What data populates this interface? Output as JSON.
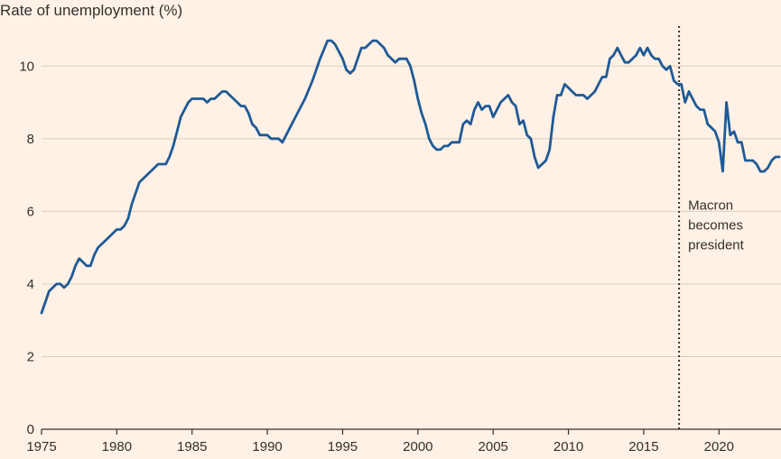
{
  "chart_data": {
    "type": "line",
    "title": "Rate of unemployment (%)",
    "xlabel": "",
    "ylabel": "Rate of unemployment (%)",
    "xlim": [
      1975,
      2024
    ],
    "ylim": [
      0,
      11
    ],
    "yticks": [
      0,
      2,
      4,
      6,
      8,
      10
    ],
    "xticks": [
      1975,
      1980,
      1985,
      1990,
      1995,
      2000,
      2005,
      2010,
      2015,
      2020
    ],
    "grid": "horizontal",
    "colors": {
      "line": "#1f5a96",
      "grid": "#d9cdbf",
      "axis": "#33302e",
      "background": "#fff1e5"
    },
    "series": [
      {
        "name": "Rate of unemployment",
        "points": [
          [
            1975.0,
            3.2
          ],
          [
            1975.25,
            3.5
          ],
          [
            1975.5,
            3.8
          ],
          [
            1975.75,
            3.9
          ],
          [
            1976.0,
            4.0
          ],
          [
            1976.25,
            4.0
          ],
          [
            1976.5,
            3.9
          ],
          [
            1976.75,
            4.0
          ],
          [
            1977.0,
            4.2
          ],
          [
            1977.25,
            4.5
          ],
          [
            1977.5,
            4.7
          ],
          [
            1977.75,
            4.6
          ],
          [
            1978.0,
            4.5
          ],
          [
            1978.25,
            4.5
          ],
          [
            1978.5,
            4.8
          ],
          [
            1978.75,
            5.0
          ],
          [
            1979.0,
            5.1
          ],
          [
            1979.5,
            5.3
          ],
          [
            1980.0,
            5.5
          ],
          [
            1980.25,
            5.5
          ],
          [
            1980.5,
            5.6
          ],
          [
            1980.75,
            5.8
          ],
          [
            1981.0,
            6.2
          ],
          [
            1981.25,
            6.5
          ],
          [
            1981.5,
            6.8
          ],
          [
            1982.0,
            7.0
          ],
          [
            1982.5,
            7.2
          ],
          [
            1982.75,
            7.3
          ],
          [
            1983.0,
            7.3
          ],
          [
            1983.25,
            7.3
          ],
          [
            1983.5,
            7.5
          ],
          [
            1983.75,
            7.8
          ],
          [
            1984.0,
            8.2
          ],
          [
            1984.25,
            8.6
          ],
          [
            1984.5,
            8.8
          ],
          [
            1984.75,
            9.0
          ],
          [
            1985.0,
            9.1
          ],
          [
            1985.5,
            9.1
          ],
          [
            1985.75,
            9.1
          ],
          [
            1986.0,
            9.0
          ],
          [
            1986.25,
            9.1
          ],
          [
            1986.5,
            9.1
          ],
          [
            1986.75,
            9.2
          ],
          [
            1987.0,
            9.3
          ],
          [
            1987.25,
            9.3
          ],
          [
            1987.5,
            9.2
          ],
          [
            1987.75,
            9.1
          ],
          [
            1988.0,
            9.0
          ],
          [
            1988.25,
            8.9
          ],
          [
            1988.5,
            8.9
          ],
          [
            1988.75,
            8.7
          ],
          [
            1989.0,
            8.4
          ],
          [
            1989.25,
            8.3
          ],
          [
            1989.5,
            8.1
          ],
          [
            1989.75,
            8.1
          ],
          [
            1990.0,
            8.1
          ],
          [
            1990.25,
            8.0
          ],
          [
            1990.5,
            8.0
          ],
          [
            1990.75,
            8.0
          ],
          [
            1991.0,
            7.9
          ],
          [
            1991.5,
            8.3
          ],
          [
            1992.0,
            8.7
          ],
          [
            1992.5,
            9.1
          ],
          [
            1993.0,
            9.6
          ],
          [
            1993.5,
            10.2
          ],
          [
            1994.0,
            10.7
          ],
          [
            1994.25,
            10.7
          ],
          [
            1994.5,
            10.6
          ],
          [
            1994.75,
            10.4
          ],
          [
            1995.0,
            10.2
          ],
          [
            1995.25,
            9.9
          ],
          [
            1995.5,
            9.8
          ],
          [
            1995.75,
            9.9
          ],
          [
            1996.0,
            10.2
          ],
          [
            1996.25,
            10.5
          ],
          [
            1996.5,
            10.5
          ],
          [
            1996.75,
            10.6
          ],
          [
            1997.0,
            10.7
          ],
          [
            1997.25,
            10.7
          ],
          [
            1997.5,
            10.6
          ],
          [
            1997.75,
            10.5
          ],
          [
            1998.0,
            10.3
          ],
          [
            1998.25,
            10.2
          ],
          [
            1998.5,
            10.1
          ],
          [
            1998.75,
            10.2
          ],
          [
            1999.0,
            10.2
          ],
          [
            1999.25,
            10.2
          ],
          [
            1999.5,
            10.0
          ],
          [
            1999.75,
            9.6
          ],
          [
            2000.0,
            9.1
          ],
          [
            2000.25,
            8.7
          ],
          [
            2000.5,
            8.4
          ],
          [
            2000.75,
            8.0
          ],
          [
            2001.0,
            7.8
          ],
          [
            2001.25,
            7.7
          ],
          [
            2001.5,
            7.7
          ],
          [
            2001.75,
            7.8
          ],
          [
            2002.0,
            7.8
          ],
          [
            2002.25,
            7.9
          ],
          [
            2002.5,
            7.9
          ],
          [
            2002.75,
            7.9
          ],
          [
            2003.0,
            8.4
          ],
          [
            2003.25,
            8.5
          ],
          [
            2003.5,
            8.4
          ],
          [
            2003.75,
            8.8
          ],
          [
            2004.0,
            9.0
          ],
          [
            2004.25,
            8.8
          ],
          [
            2004.5,
            8.9
          ],
          [
            2004.75,
            8.9
          ],
          [
            2005.0,
            8.6
          ],
          [
            2005.25,
            8.8
          ],
          [
            2005.5,
            9.0
          ],
          [
            2005.75,
            9.1
          ],
          [
            2006.0,
            9.2
          ],
          [
            2006.25,
            9.0
          ],
          [
            2006.5,
            8.9
          ],
          [
            2006.75,
            8.4
          ],
          [
            2007.0,
            8.5
          ],
          [
            2007.25,
            8.1
          ],
          [
            2007.5,
            8.0
          ],
          [
            2007.75,
            7.5
          ],
          [
            2008.0,
            7.2
          ],
          [
            2008.25,
            7.3
          ],
          [
            2008.5,
            7.4
          ],
          [
            2008.75,
            7.7
          ],
          [
            2009.0,
            8.6
          ],
          [
            2009.25,
            9.2
          ],
          [
            2009.5,
            9.2
          ],
          [
            2009.75,
            9.5
          ],
          [
            2010.0,
            9.4
          ],
          [
            2010.25,
            9.3
          ],
          [
            2010.5,
            9.2
          ],
          [
            2010.75,
            9.2
          ],
          [
            2011.0,
            9.2
          ],
          [
            2011.25,
            9.1
          ],
          [
            2011.5,
            9.2
          ],
          [
            2011.75,
            9.3
          ],
          [
            2012.0,
            9.5
          ],
          [
            2012.25,
            9.7
          ],
          [
            2012.5,
            9.7
          ],
          [
            2012.75,
            10.2
          ],
          [
            2013.0,
            10.3
          ],
          [
            2013.25,
            10.5
          ],
          [
            2013.5,
            10.3
          ],
          [
            2013.75,
            10.1
          ],
          [
            2014.0,
            10.1
          ],
          [
            2014.25,
            10.2
          ],
          [
            2014.5,
            10.3
          ],
          [
            2014.75,
            10.5
          ],
          [
            2015.0,
            10.3
          ],
          [
            2015.25,
            10.5
          ],
          [
            2015.5,
            10.3
          ],
          [
            2015.75,
            10.2
          ],
          [
            2016.0,
            10.2
          ],
          [
            2016.25,
            10.0
          ],
          [
            2016.5,
            9.9
          ],
          [
            2016.75,
            10.0
          ],
          [
            2017.0,
            9.6
          ],
          [
            2017.25,
            9.5
          ],
          [
            2017.5,
            9.5
          ],
          [
            2017.75,
            9.0
          ],
          [
            2018.0,
            9.3
          ],
          [
            2018.25,
            9.1
          ],
          [
            2018.5,
            8.9
          ],
          [
            2018.75,
            8.8
          ],
          [
            2019.0,
            8.8
          ],
          [
            2019.25,
            8.4
          ],
          [
            2019.5,
            8.3
          ],
          [
            2019.75,
            8.2
          ],
          [
            2020.0,
            7.9
          ],
          [
            2020.25,
            7.1
          ],
          [
            2020.5,
            9.0
          ],
          [
            2020.75,
            8.1
          ],
          [
            2021.0,
            8.2
          ],
          [
            2021.25,
            7.9
          ],
          [
            2021.5,
            7.9
          ],
          [
            2021.75,
            7.4
          ],
          [
            2022.0,
            7.4
          ],
          [
            2022.25,
            7.4
          ],
          [
            2022.5,
            7.3
          ],
          [
            2022.75,
            7.1
          ],
          [
            2023.0,
            7.1
          ],
          [
            2023.25,
            7.2
          ],
          [
            2023.5,
            7.4
          ],
          [
            2023.75,
            7.5
          ],
          [
            2024.0,
            7.5
          ]
        ]
      }
    ],
    "annotations": [
      {
        "x": 2017.35,
        "lines": [
          "Macron",
          "becomes",
          "president"
        ]
      }
    ]
  }
}
